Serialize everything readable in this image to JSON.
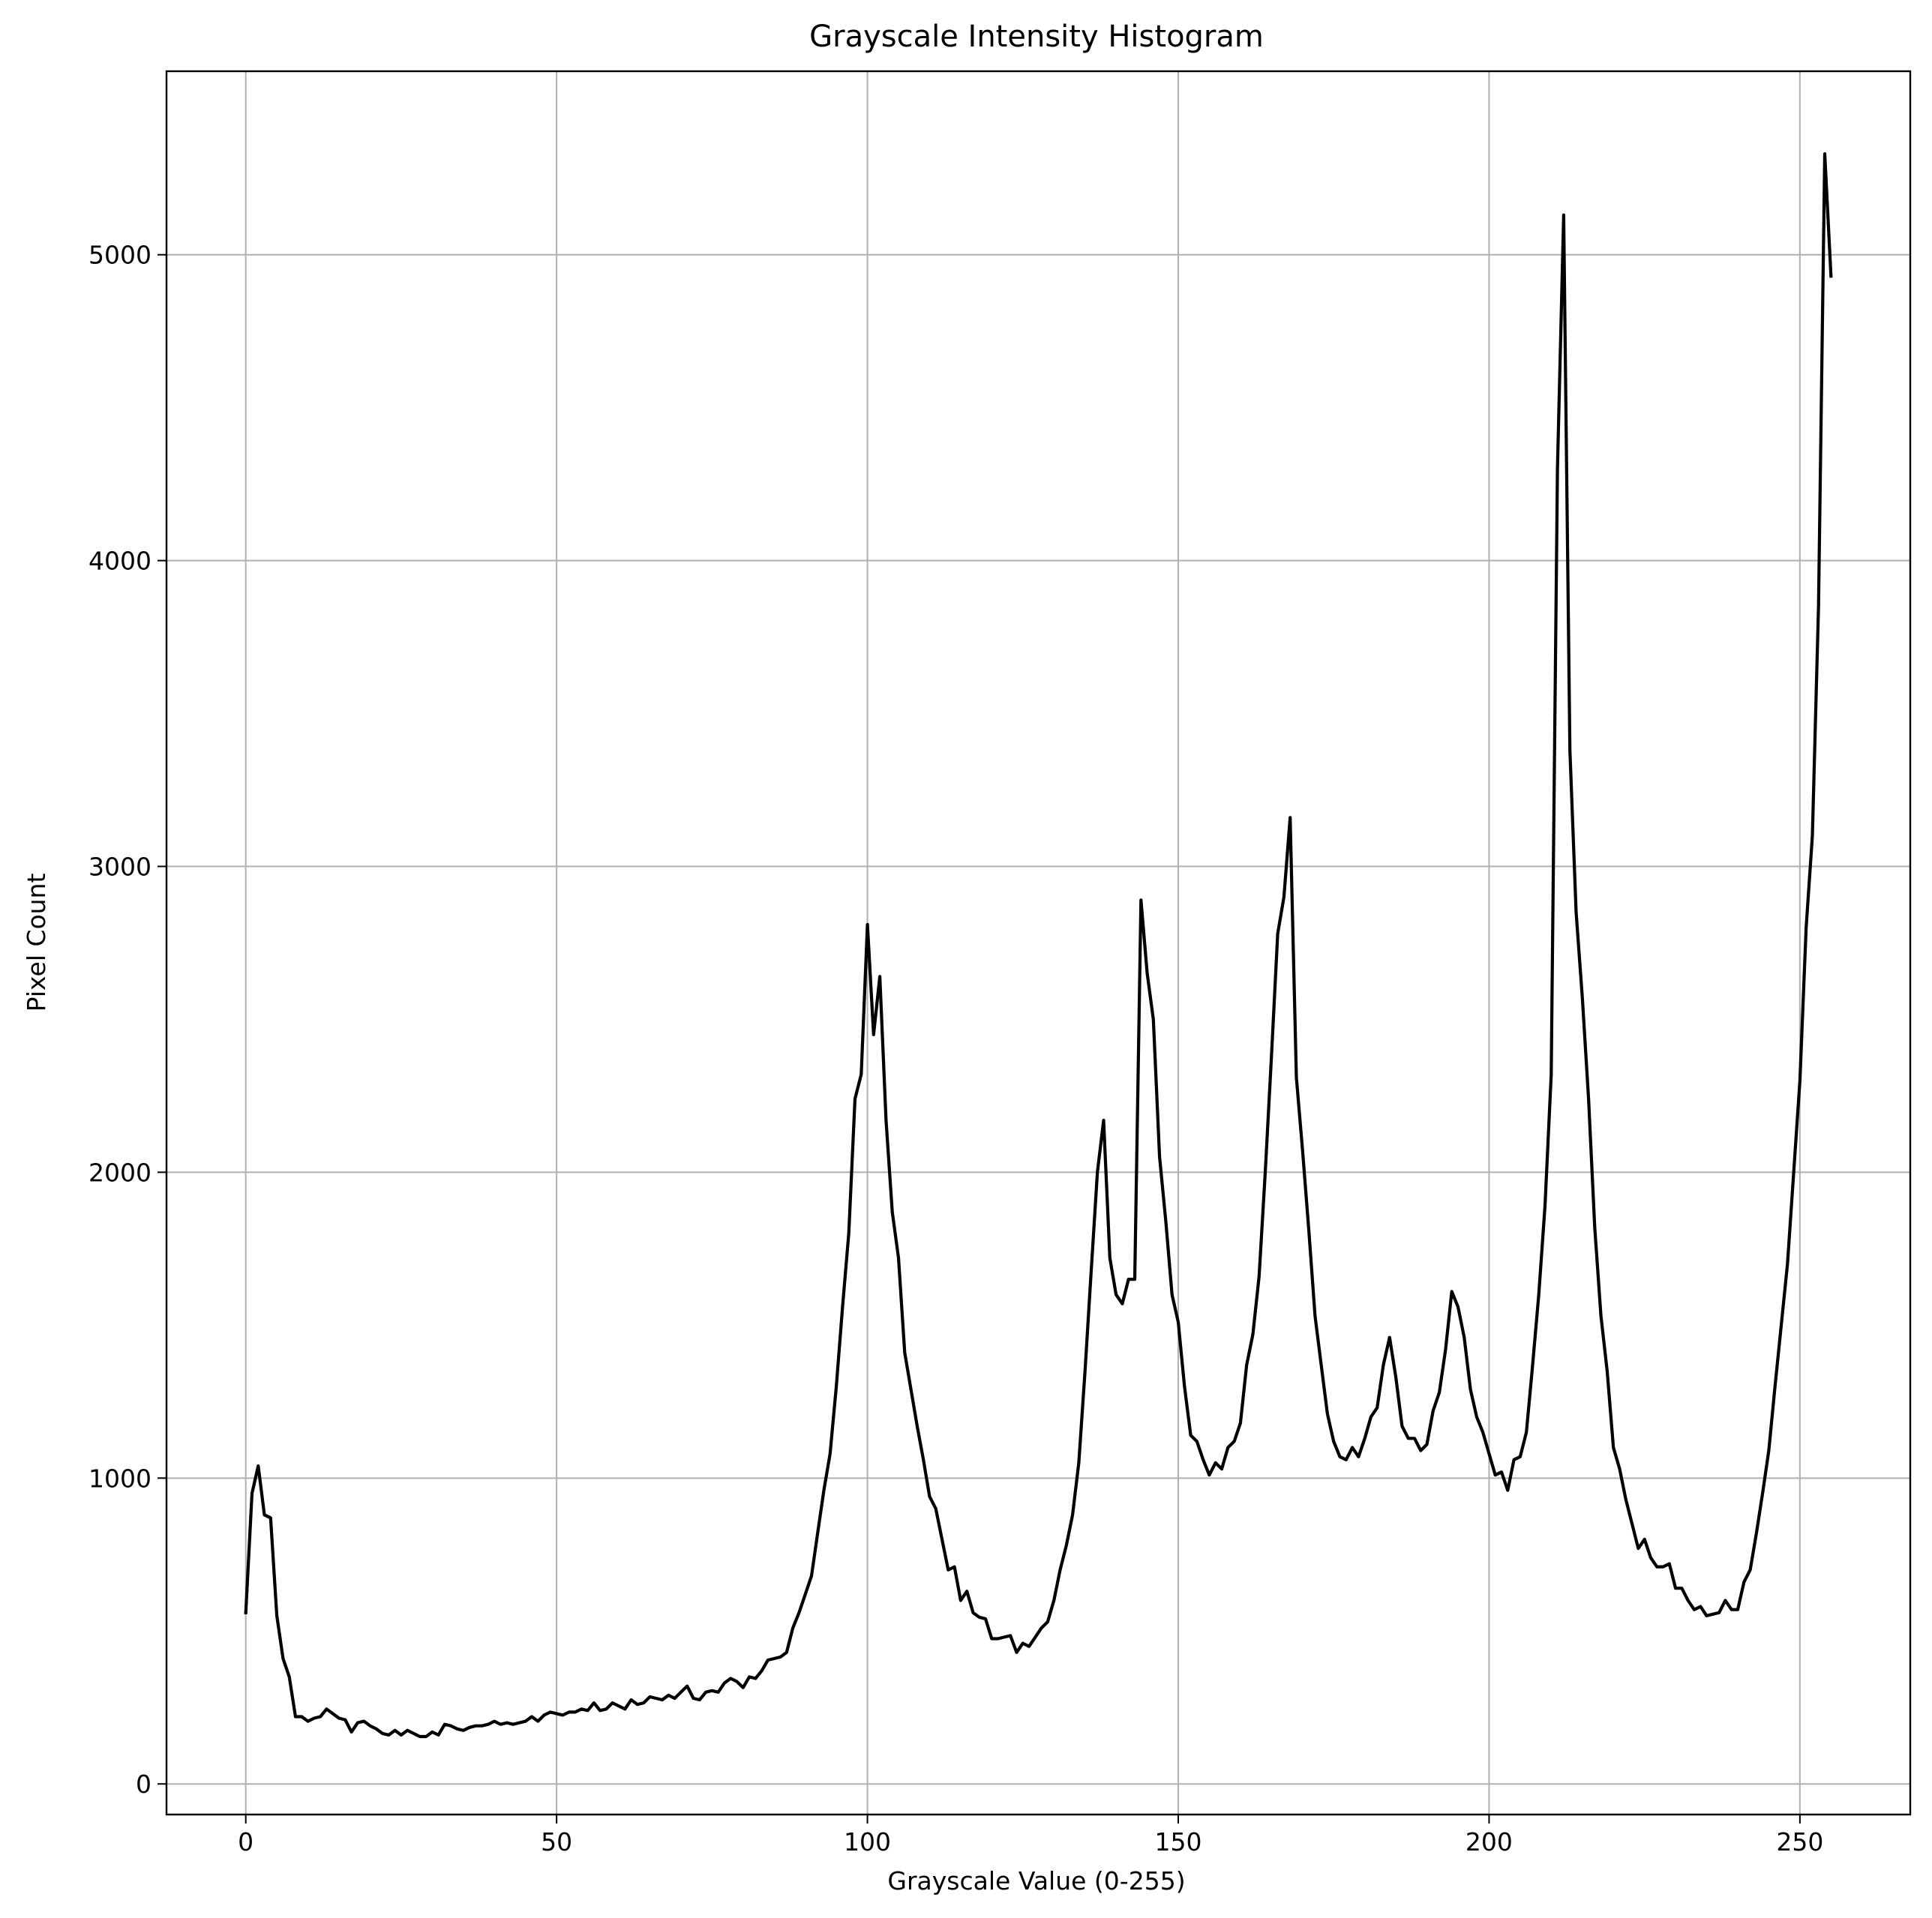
{
  "chart_data": {
    "type": "line",
    "title": "Grayscale Intensity Histogram",
    "xlabel": "Grayscale Value (0-255)",
    "ylabel": "Pixel Count",
    "xlim": [
      -12.75,
      267.75
    ],
    "ylim": [
      -100,
      5600
    ],
    "xticks": [
      0,
      50,
      100,
      150,
      200,
      250
    ],
    "yticks": [
      0,
      1000,
      2000,
      3000,
      4000,
      5000
    ],
    "xtick_labels": [
      "0",
      "50",
      "100",
      "150",
      "200",
      "250"
    ],
    "ytick_labels": [
      "0",
      "1000",
      "2000",
      "3000",
      "4000",
      "5000"
    ],
    "grid": true,
    "legend": "none",
    "line_color": "#000000",
    "grid_color": "#b0b0b0",
    "series": [
      {
        "x": [
          0,
          1,
          2,
          3,
          4,
          5,
          6,
          7,
          8,
          9,
          10,
          11,
          12,
          13,
          14,
          15,
          16,
          17,
          18,
          19,
          20,
          21,
          22,
          23,
          24,
          25,
          26,
          27,
          28,
          29,
          30,
          31,
          32,
          33,
          34,
          35,
          36,
          37,
          38,
          39,
          40,
          41,
          42,
          43,
          44,
          45,
          46,
          47,
          48,
          49,
          50,
          51,
          52,
          53,
          54,
          55,
          56,
          57,
          58,
          59,
          60,
          61,
          62,
          63,
          64,
          65,
          66,
          67,
          68,
          69,
          70,
          71,
          72,
          73,
          74,
          75,
          76,
          77,
          78,
          79,
          80,
          81,
          82,
          83,
          84,
          85,
          86,
          87,
          88,
          89,
          90,
          91,
          92,
          93,
          94,
          95,
          96,
          97,
          98,
          99,
          100,
          101,
          102,
          103,
          104,
          105,
          106,
          107,
          108,
          109,
          110,
          111,
          112,
          113,
          114,
          115,
          116,
          117,
          118,
          119,
          120,
          121,
          122,
          123,
          124,
          125,
          126,
          127,
          128,
          129,
          130,
          131,
          132,
          133,
          134,
          135,
          136,
          137,
          138,
          139,
          140,
          141,
          142,
          143,
          144,
          145,
          146,
          147,
          148,
          149,
          150,
          151,
          152,
          153,
          154,
          155,
          156,
          157,
          158,
          159,
          160,
          161,
          162,
          163,
          164,
          165,
          166,
          167,
          168,
          169,
          170,
          171,
          172,
          173,
          174,
          175,
          176,
          177,
          178,
          179,
          180,
          181,
          182,
          183,
          184,
          185,
          186,
          187,
          188,
          189,
          190,
          191,
          192,
          193,
          194,
          195,
          196,
          197,
          198,
          199,
          200,
          201,
          202,
          203,
          204,
          205,
          206,
          207,
          208,
          209,
          210,
          211,
          212,
          213,
          214,
          215,
          216,
          217,
          218,
          219,
          220,
          221,
          222,
          223,
          224,
          225,
          226,
          227,
          228,
          229,
          230,
          231,
          232,
          233,
          234,
          235,
          236,
          237,
          238,
          239,
          240,
          241,
          242,
          243,
          244,
          245,
          246,
          247,
          248,
          249,
          250,
          251,
          252,
          253,
          254,
          255
        ],
        "y": [
          560,
          950,
          1040,
          880,
          870,
          550,
          410,
          350,
          220,
          220,
          205,
          215,
          220,
          245,
          230,
          215,
          210,
          170,
          200,
          205,
          190,
          180,
          165,
          160,
          175,
          160,
          175,
          165,
          155,
          155,
          170,
          160,
          195,
          190,
          180,
          175,
          185,
          190,
          190,
          195,
          205,
          195,
          200,
          195,
          200,
          205,
          220,
          205,
          225,
          235,
          230,
          225,
          235,
          235,
          245,
          240,
          265,
          240,
          245,
          265,
          255,
          245,
          275,
          260,
          265,
          285,
          280,
          275,
          290,
          280,
          300,
          320,
          280,
          275,
          300,
          305,
          300,
          330,
          345,
          335,
          315,
          350,
          345,
          370,
          405,
          410,
          415,
          430,
          510,
          560,
          620,
          680,
          820,
          960,
          1080,
          1300,
          1560,
          1800,
          2240,
          2320,
          2810,
          2450,
          2640,
          2170,
          1870,
          1720,
          1410,
          1290,
          1170,
          1060,
          940,
          900,
          800,
          700,
          710,
          600,
          630,
          560,
          545,
          540,
          475,
          475,
          480,
          485,
          430,
          460,
          450,
          480,
          510,
          530,
          600,
          700,
          780,
          880,
          1050,
          1350,
          1680,
          2000,
          2170,
          1720,
          1600,
          1570,
          1650,
          1650,
          2890,
          2650,
          2500,
          2050,
          1840,
          1600,
          1510,
          1300,
          1140,
          1120,
          1060,
          1010,
          1050,
          1030,
          1100,
          1120,
          1180,
          1370,
          1470,
          1660,
          2000,
          2380,
          2780,
          2900,
          3160,
          2310,
          2070,
          1810,
          1530,
          1370,
          1210,
          1120,
          1070,
          1060,
          1100,
          1070,
          1130,
          1200,
          1230,
          1370,
          1460,
          1330,
          1170,
          1130,
          1130,
          1090,
          1110,
          1220,
          1280,
          1420,
          1610,
          1560,
          1460,
          1290,
          1200,
          1150,
          1080,
          1010,
          1020,
          960,
          1060,
          1070,
          1150,
          1370,
          1600,
          1890,
          2320,
          4300,
          5130,
          3380,
          2850,
          2570,
          2240,
          1820,
          1530,
          1350,
          1100,
          1030,
          930,
          850,
          770,
          800,
          740,
          710,
          710,
          720,
          640,
          640,
          600,
          570,
          580,
          550,
          555,
          560,
          600,
          570,
          570,
          660,
          700,
          820,
          950,
          1090,
          1300,
          1500,
          1700,
          2000,
          2300,
          2800,
          3100,
          3850,
          5330,
          4930
        ]
      }
    ]
  }
}
